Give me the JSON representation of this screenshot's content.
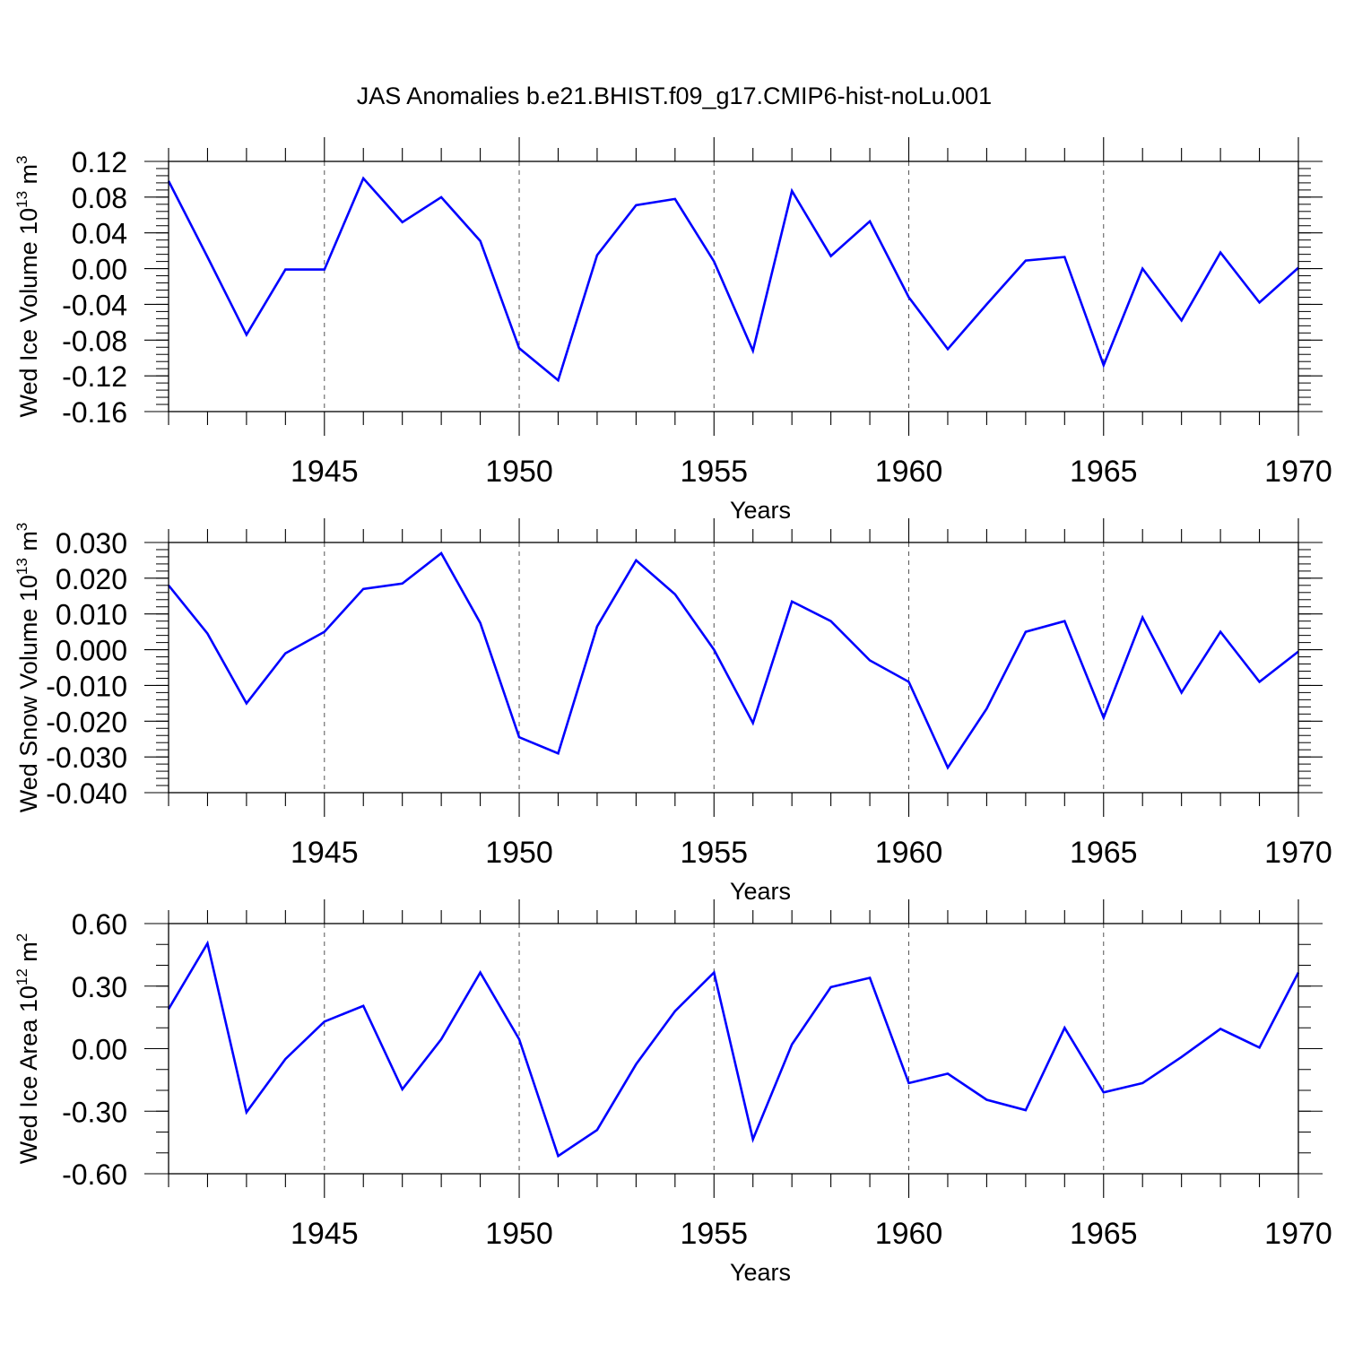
{
  "title": "JAS Anomalies b.e21.BHIST.f09_g17.CMIP6-hist-noLu.001",
  "colors": {
    "line": "#0000ff",
    "axis": "#000000",
    "grid": "#555555"
  },
  "chart_data": [
    {
      "type": "line",
      "ylabel_main": "Wed Ice Volume 10",
      "ylabel_exp": "13",
      "ylabel_unit": " m",
      "ylabel_unit_exp": "3",
      "xlabel": "Years",
      "xlim": [
        1941,
        1970
      ],
      "ylim": [
        -0.16,
        0.12
      ],
      "yticks": [
        -0.16,
        -0.12,
        -0.08,
        -0.04,
        0.0,
        0.04,
        0.08,
        0.12
      ],
      "ytick_labels": [
        "-0.16",
        "-0.12",
        "-0.08",
        "-0.04",
        "0.00",
        "0.04",
        "0.08",
        "0.12"
      ],
      "yminor_step": 0.008,
      "xticks": [
        1945,
        1950,
        1955,
        1960,
        1965,
        1970
      ],
      "xtick_labels": [
        "1945",
        "1950",
        "1955",
        "1960",
        "1965",
        "1970"
      ],
      "grid": "vertical dashed at major x ticks",
      "x": [
        1941,
        1942,
        1943,
        1944,
        1945,
        1946,
        1947,
        1948,
        1949,
        1950,
        1951,
        1952,
        1953,
        1954,
        1955,
        1956,
        1957,
        1958,
        1959,
        1960,
        1961,
        1962,
        1963,
        1964,
        1965,
        1966,
        1967,
        1968,
        1969,
        1970
      ],
      "series": [
        {
          "name": "Wed Ice Volume",
          "values": [
            0.098,
            0.013,
            -0.074,
            -0.001,
            -0.001,
            0.101,
            0.052,
            0.08,
            0.031,
            -0.089,
            -0.125,
            0.015,
            0.071,
            0.078,
            0.008,
            -0.092,
            0.087,
            0.014,
            0.053,
            -0.032,
            -0.09,
            -0.04,
            0.009,
            0.013,
            -0.108,
            0.0,
            -0.058,
            0.018,
            -0.038,
            0.001
          ]
        }
      ]
    },
    {
      "type": "line",
      "ylabel_main": "Wed Snow Volume 10",
      "ylabel_exp": "13",
      "ylabel_unit": " m",
      "ylabel_unit_exp": "3",
      "xlabel": "Years",
      "xlim": [
        1941,
        1970
      ],
      "ylim": [
        -0.04,
        0.03
      ],
      "yticks": [
        -0.04,
        -0.03,
        -0.02,
        -0.01,
        0.0,
        0.01,
        0.02,
        0.03
      ],
      "ytick_labels": [
        "-0.040",
        "-0.030",
        "-0.020",
        "-0.010",
        "0.000",
        "0.010",
        "0.020",
        "0.030"
      ],
      "yminor_step": 0.002,
      "xticks": [
        1945,
        1950,
        1955,
        1960,
        1965,
        1970
      ],
      "xtick_labels": [
        "1945",
        "1950",
        "1955",
        "1960",
        "1965",
        "1970"
      ],
      "grid": "vertical dashed at major x ticks",
      "x": [
        1941,
        1942,
        1943,
        1944,
        1945,
        1946,
        1947,
        1948,
        1949,
        1950,
        1951,
        1952,
        1953,
        1954,
        1955,
        1956,
        1957,
        1958,
        1959,
        1960,
        1961,
        1962,
        1963,
        1964,
        1965,
        1966,
        1967,
        1968,
        1969,
        1970
      ],
      "series": [
        {
          "name": "Wed Snow Volume",
          "values": [
            0.018,
            0.0045,
            -0.015,
            -0.001,
            0.005,
            0.017,
            0.0185,
            0.027,
            0.0075,
            -0.0245,
            -0.029,
            0.0065,
            0.025,
            0.0155,
            0.0,
            -0.0205,
            0.0135,
            0.008,
            -0.003,
            -0.009,
            -0.033,
            -0.0165,
            0.005,
            0.008,
            -0.019,
            0.009,
            -0.012,
            0.005,
            -0.009,
            -0.0005
          ]
        }
      ]
    },
    {
      "type": "line",
      "ylabel_main": "Wed Ice Area 10",
      "ylabel_exp": "12",
      "ylabel_unit": " m",
      "ylabel_unit_exp": "2",
      "xlabel": "Years",
      "xlim": [
        1941,
        1970
      ],
      "ylim": [
        -0.6,
        0.6
      ],
      "yticks": [
        -0.6,
        -0.3,
        0.0,
        0.3,
        0.6
      ],
      "ytick_labels": [
        "-0.60",
        "-0.30",
        "0.00",
        "0.30",
        "0.60"
      ],
      "yminor_step": 0.1,
      "xticks": [
        1945,
        1950,
        1955,
        1960,
        1965,
        1970
      ],
      "xtick_labels": [
        "1945",
        "1950",
        "1955",
        "1960",
        "1965",
        "1970"
      ],
      "grid": "vertical dashed at major x ticks",
      "x": [
        1941,
        1942,
        1943,
        1944,
        1945,
        1946,
        1947,
        1948,
        1949,
        1950,
        1951,
        1952,
        1953,
        1954,
        1955,
        1956,
        1957,
        1958,
        1959,
        1960,
        1961,
        1962,
        1963,
        1964,
        1965,
        1966,
        1967,
        1968,
        1969,
        1970
      ],
      "series": [
        {
          "name": "Wed Ice Area",
          "values": [
            0.19,
            0.505,
            -0.305,
            -0.05,
            0.13,
            0.205,
            -0.195,
            0.045,
            0.365,
            0.045,
            -0.515,
            -0.39,
            -0.075,
            0.18,
            0.365,
            -0.435,
            0.02,
            0.295,
            0.34,
            -0.165,
            -0.12,
            -0.245,
            -0.295,
            0.1,
            -0.21,
            -0.165,
            -0.04,
            0.095,
            0.005,
            0.365
          ]
        }
      ]
    }
  ]
}
